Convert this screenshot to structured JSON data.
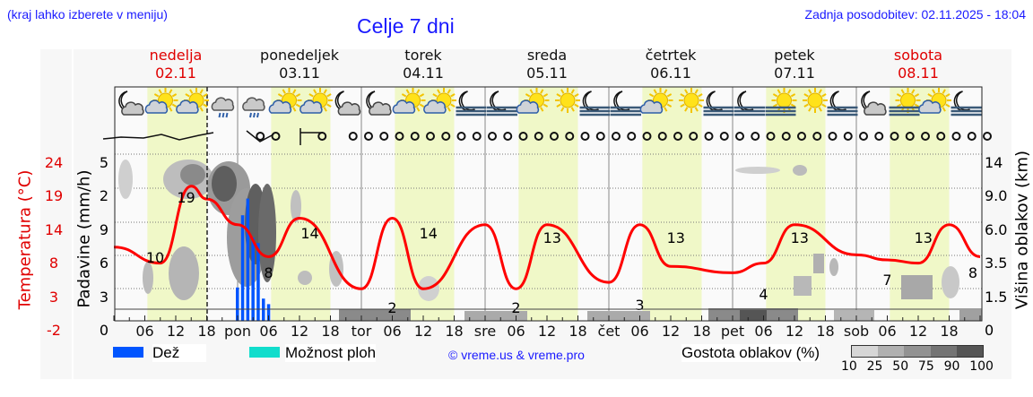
{
  "header": {
    "hint": "(kraj lahko izberete v meniju)",
    "title": "Celje 7 dni",
    "updated": "Zadnja posodobitev: 02.11.2025 - 18:04"
  },
  "days": [
    {
      "name": "nedelja",
      "date": "02.11",
      "weekend": true
    },
    {
      "name": "ponedeljek",
      "date": "03.11",
      "weekend": false
    },
    {
      "name": "torek",
      "date": "04.11",
      "weekend": false
    },
    {
      "name": "sreda",
      "date": "05.11",
      "weekend": false
    },
    {
      "name": "četrtek",
      "date": "06.11",
      "weekend": false
    },
    {
      "name": "petek",
      "date": "07.11",
      "weekend": false
    },
    {
      "name": "sobota",
      "date": "08.11",
      "weekend": true
    }
  ],
  "axes": {
    "temp_label": "Temperatura (°C)",
    "temp_ticks": [
      "24",
      "19",
      "14",
      "8",
      "3",
      "-2"
    ],
    "rain_label": "Padavine (mm/h)",
    "rain_ticks": [
      "5",
      "2",
      "9",
      "6",
      "3",
      "0"
    ],
    "cloud_label": "Višina oblakov (km)",
    "cloud_ticks": [
      "14",
      "9.0",
      "6.0",
      "3.5",
      "1.5",
      "0"
    ],
    "x_ticks": [
      "06",
      "12",
      "18",
      "pon",
      "06",
      "12",
      "18",
      "tor",
      "06",
      "12",
      "18",
      "sre",
      "06",
      "12",
      "18",
      "čet",
      "06",
      "12",
      "18",
      "pet",
      "06",
      "12",
      "18",
      "sob",
      "06",
      "12",
      "18"
    ]
  },
  "legend": {
    "rain": "Dež",
    "showers": "Možnost ploh",
    "copyright": "© vreme.us & vreme.pro",
    "cloud_density": "Gostota oblakov (%)",
    "density_ticks": [
      "10",
      "25",
      "50",
      "75",
      "90",
      "100"
    ]
  },
  "colors": {
    "temp_line": "#ff0000",
    "rain": "#0055ff",
    "showers": "#11ddcc",
    "day_band": "#f0f8c8",
    "title_blue": "#1a1aff",
    "weekend_red": "#e00000"
  },
  "icons": [
    "moon-cloud",
    "sun-cloud",
    "sun-cloud",
    "rain-cloud",
    "rain-cloud",
    "sun-cloud",
    "sun-cloud",
    "moon-cloud",
    "moon-cloud",
    "sun-cloud",
    "sun-cloud",
    "moon-fog",
    "moon-fog",
    "sun-cloud",
    "sun",
    "moon-fog",
    "moon-fog",
    "sun-cloud",
    "sun",
    "moon-fog",
    "moon-fog",
    "sun-fog",
    "sun",
    "moon-fog",
    "moon-cloud",
    "sun-fog",
    "sun-cloud",
    "moon-fog"
  ],
  "chart_data": {
    "type": "line",
    "title": "Celje 7 dni",
    "xlabel": "",
    "ylabel": "Temperatura (°C)",
    "ylim": [
      -2,
      24
    ],
    "x_hours": [
      0,
      9,
      15,
      18,
      24,
      30,
      36,
      48,
      54,
      60,
      72,
      78,
      84,
      96,
      102,
      108,
      120,
      126,
      132,
      144,
      150,
      156,
      162,
      168
    ],
    "series": [
      {
        "name": "Temperatura",
        "values": [
          9.5,
          7,
          19,
          17,
          13,
          8,
          14,
          3,
          14,
          3,
          13,
          3,
          13,
          4,
          13,
          6.5,
          5.5,
          7,
          13,
          8.3,
          7.5,
          7,
          13,
          8
        ]
      }
    ],
    "annotations": [
      {
        "x_hour": 8,
        "label": "10"
      },
      {
        "x_hour": 14,
        "label": "19"
      },
      {
        "x_hour": 30,
        "label": "8"
      },
      {
        "x_hour": 38,
        "label": "14"
      },
      {
        "x_hour": 54,
        "label": "2"
      },
      {
        "x_hour": 61,
        "label": "14"
      },
      {
        "x_hour": 78,
        "label": "2"
      },
      {
        "x_hour": 85,
        "label": "13"
      },
      {
        "x_hour": 102,
        "label": "3"
      },
      {
        "x_hour": 109,
        "label": "13"
      },
      {
        "x_hour": 126,
        "label": "4"
      },
      {
        "x_hour": 133,
        "label": "13"
      },
      {
        "x_hour": 150,
        "label": "7"
      },
      {
        "x_hour": 157,
        "label": "13"
      },
      {
        "x_hour": 168,
        "label": "8"
      }
    ],
    "rain_bars_mm_h": [
      {
        "x_hour": 24,
        "value": 3
      },
      {
        "x_hour": 25,
        "value": 9.5
      },
      {
        "x_hour": 26,
        "value": 11
      },
      {
        "x_hour": 27,
        "value": 7.5
      },
      {
        "x_hour": 28,
        "value": 7
      },
      {
        "x_hour": 29,
        "value": 2
      },
      {
        "x_hour": 30,
        "value": 1.5
      }
    ],
    "grid": true
  }
}
